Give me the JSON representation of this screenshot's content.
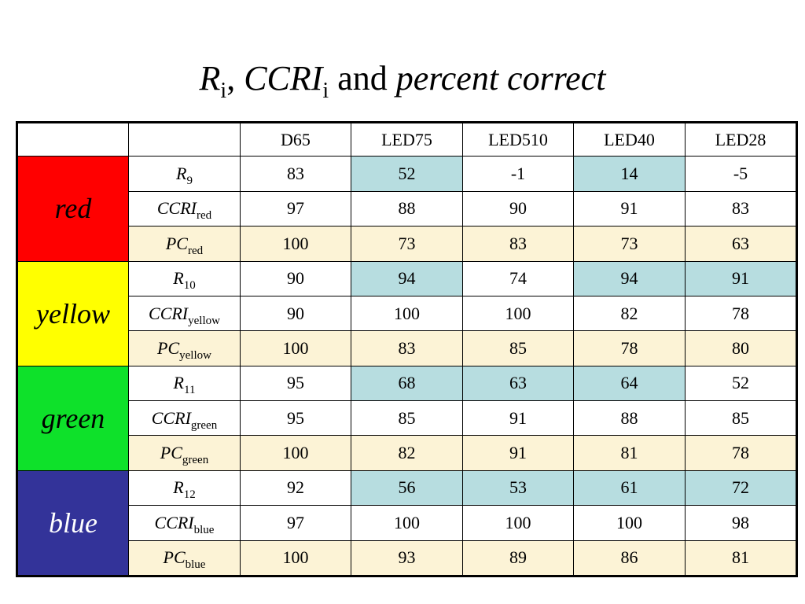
{
  "title": {
    "r": "R",
    "r_sub": "i",
    "sep": ", ",
    "ccri": "CCRI",
    "ccri_sub": "i",
    "and": " and ",
    "pc": "percent correct"
  },
  "colors": {
    "r_row_background": "#b7dde0",
    "pc_row_background": "#fcf3d6",
    "red": "#ff0000",
    "yellow": "#ffff00",
    "green": "#0ee12a",
    "blue": "#333399"
  },
  "table": {
    "columns": [
      "D65",
      "LED75",
      "LED510",
      "LED40",
      "LED28"
    ],
    "groups": [
      {
        "name": "red",
        "color": "#ff0000",
        "text_color": "#000000",
        "rows": [
          {
            "kind": "R",
            "metric": "R",
            "sub": "9",
            "values": [
              "83",
              "52",
              "-1",
              "14",
              "-5"
            ],
            "shaded": [
              false,
              true,
              false,
              true,
              false
            ]
          },
          {
            "kind": "CCRI",
            "metric": "CCRI",
            "sub": "red",
            "values": [
              "97",
              "88",
              "90",
              "91",
              "83"
            ]
          },
          {
            "kind": "PC",
            "metric": "PC",
            "sub": "red",
            "values": [
              "100",
              "73",
              "83",
              "73",
              "63"
            ]
          }
        ]
      },
      {
        "name": "yellow",
        "color": "#ffff00",
        "text_color": "#000000",
        "rows": [
          {
            "kind": "R",
            "metric": "R",
            "sub": "10",
            "values": [
              "90",
              "94",
              "74",
              "94",
              "91"
            ],
            "shaded": [
              false,
              true,
              false,
              true,
              true
            ]
          },
          {
            "kind": "CCRI",
            "metric": "CCRI",
            "sub": "yellow",
            "values": [
              "90",
              "100",
              "100",
              "82",
              "78"
            ]
          },
          {
            "kind": "PC",
            "metric": "PC",
            "sub": "yellow",
            "values": [
              "100",
              "83",
              "85",
              "78",
              "80"
            ]
          }
        ]
      },
      {
        "name": "green",
        "color": "#0ee12a",
        "text_color": "#000000",
        "rows": [
          {
            "kind": "R",
            "metric": "R",
            "sub": "11",
            "values": [
              "95",
              "68",
              "63",
              "64",
              "52"
            ],
            "shaded": [
              false,
              true,
              true,
              true,
              false
            ]
          },
          {
            "kind": "CCRI",
            "metric": "CCRI",
            "sub": "green",
            "values": [
              "95",
              "85",
              "91",
              "88",
              "85"
            ]
          },
          {
            "kind": "PC",
            "metric": "PC",
            "sub": "green",
            "values": [
              "100",
              "82",
              "91",
              "81",
              "78"
            ]
          }
        ]
      },
      {
        "name": "blue",
        "color": "#333399",
        "text_color": "#ffffff",
        "rows": [
          {
            "kind": "R",
            "metric": "R",
            "sub": "12",
            "values": [
              "92",
              "56",
              "53",
              "61",
              "72"
            ],
            "shaded": [
              false,
              true,
              true,
              true,
              true
            ]
          },
          {
            "kind": "CCRI",
            "metric": "CCRI",
            "sub": "blue",
            "values": [
              "97",
              "100",
              "100",
              "100",
              "98"
            ]
          },
          {
            "kind": "PC",
            "metric": "PC",
            "sub": "blue",
            "values": [
              "100",
              "93",
              "89",
              "86",
              "81"
            ]
          }
        ]
      }
    ]
  }
}
